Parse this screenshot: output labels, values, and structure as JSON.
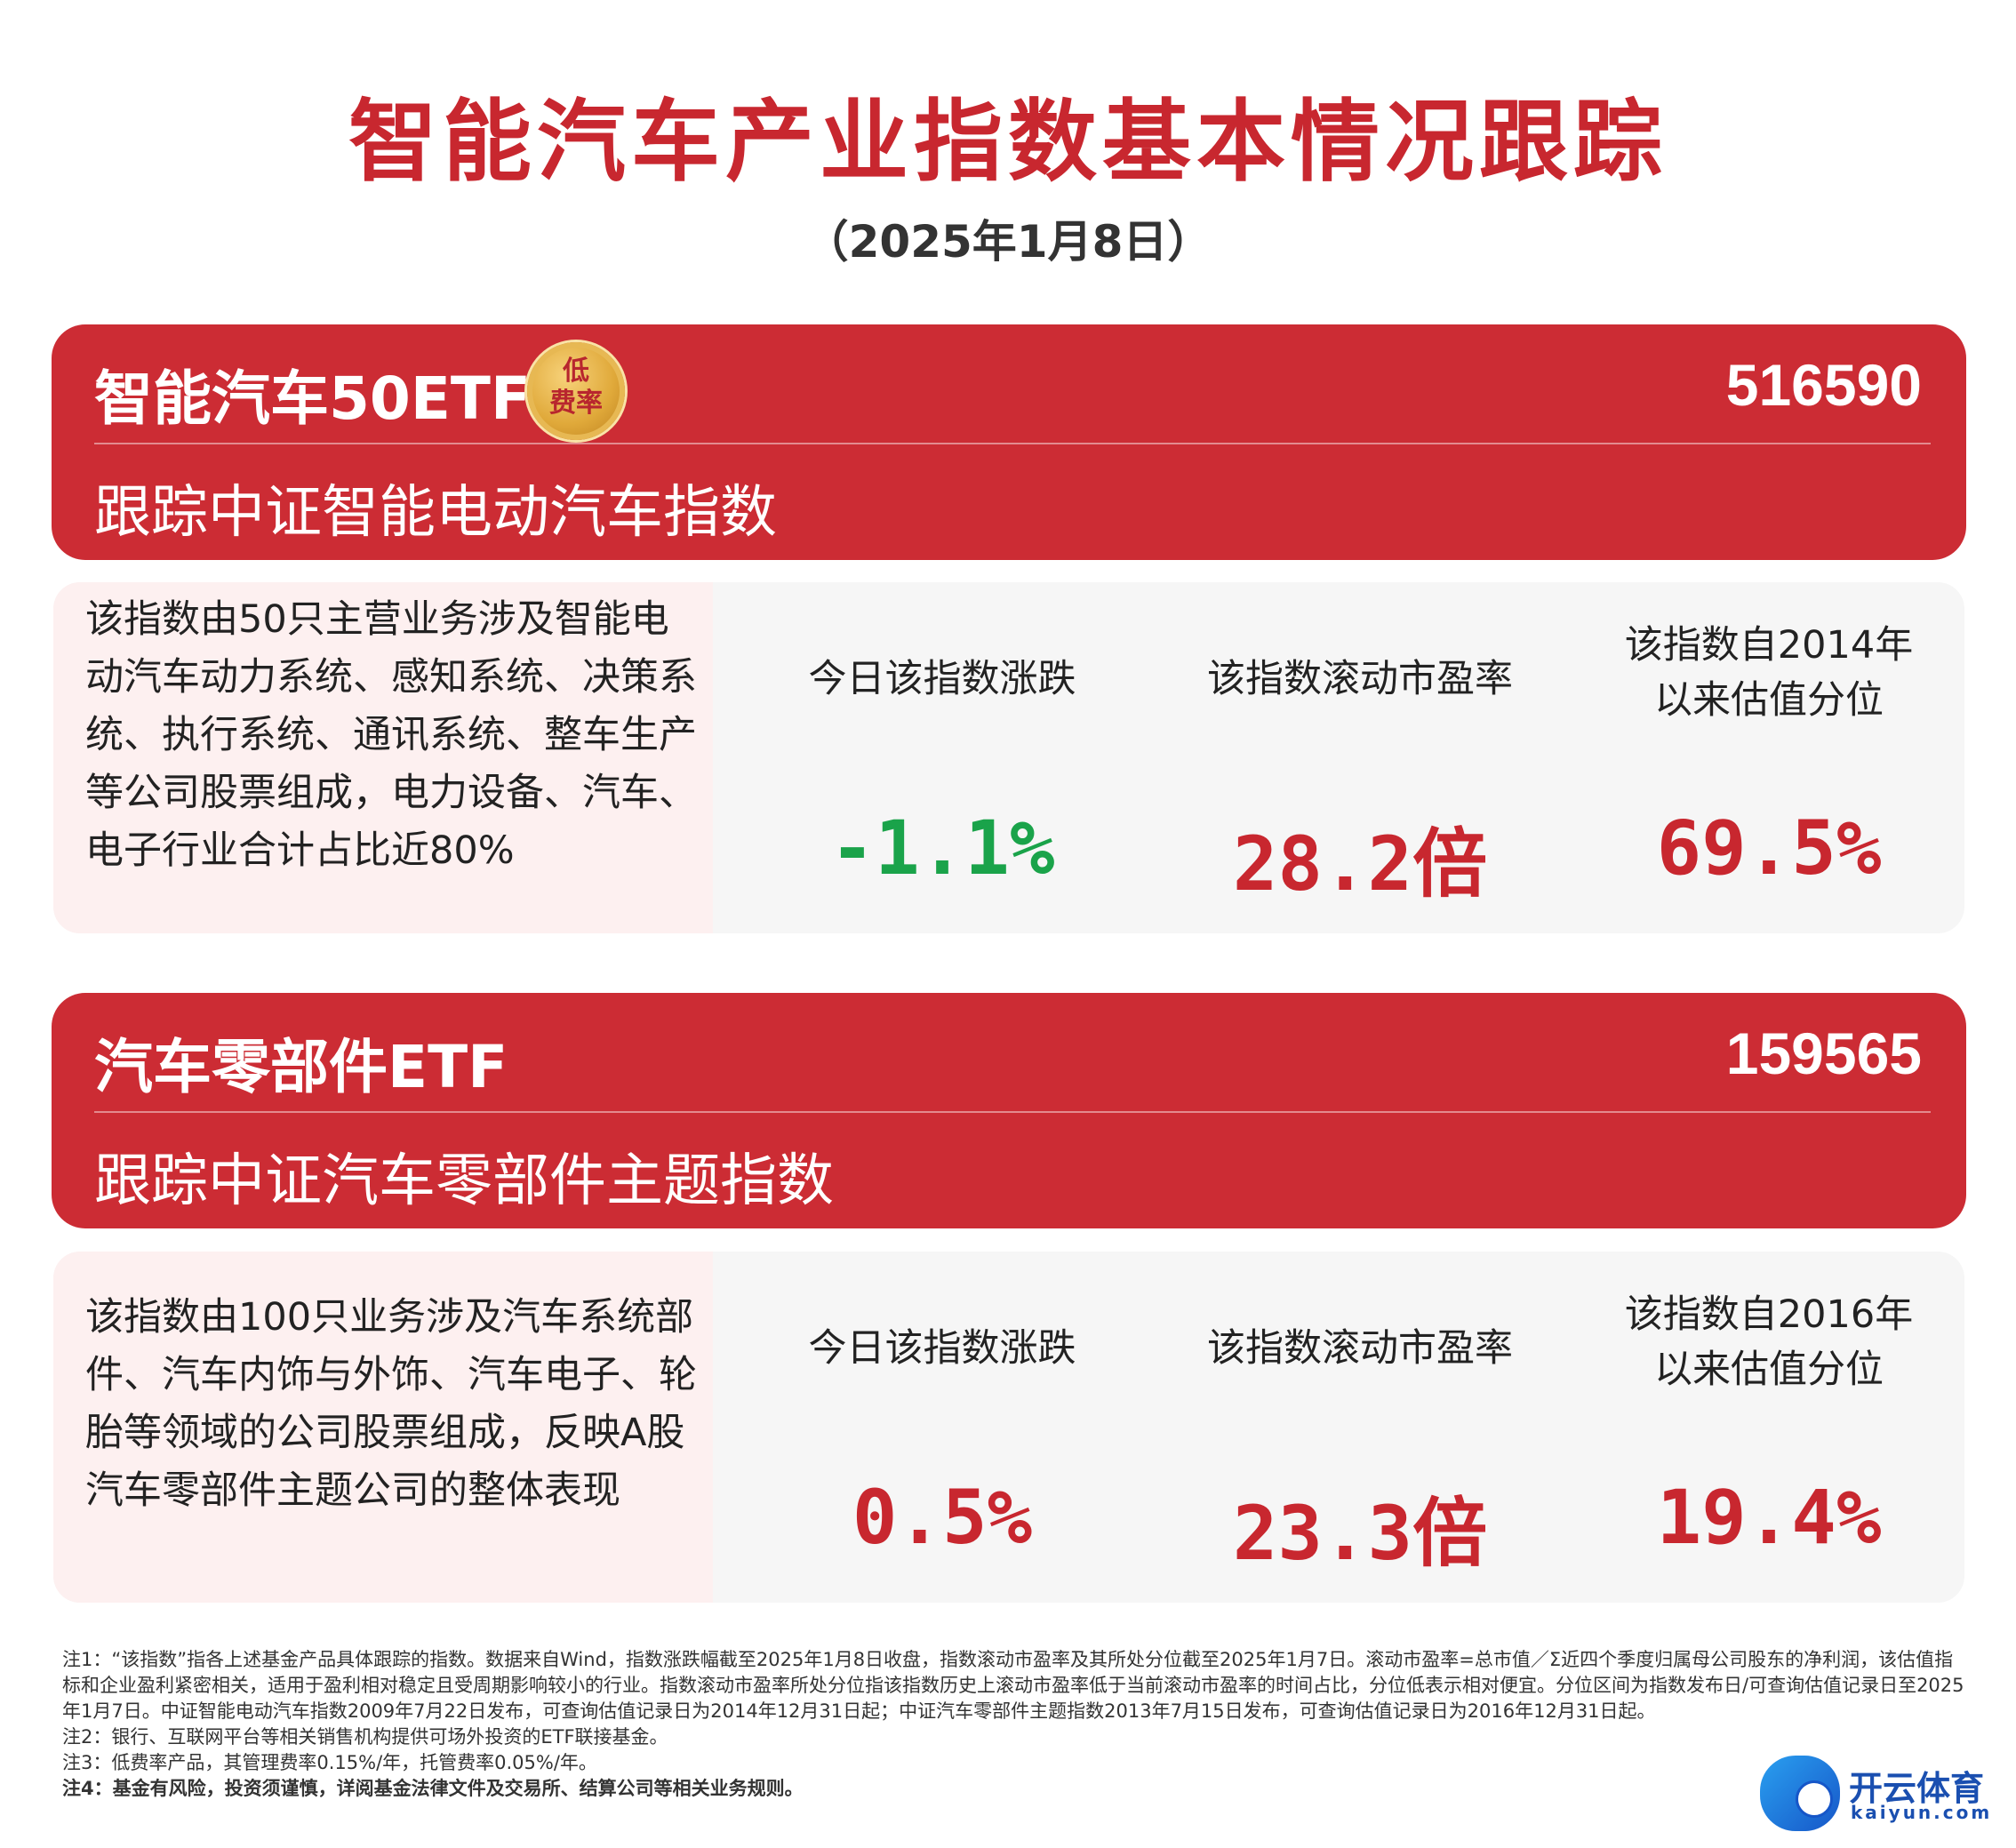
{
  "header": {
    "title": "智能汽车产业指数基本情况跟踪",
    "date": "（2025年1月8日）"
  },
  "funds": [
    {
      "name": "智能汽车50ETF",
      "badge": [
        "低",
        "费率"
      ],
      "code": "516590",
      "tracking": "跟踪中证智能电动汽车指数",
      "description": "该指数由50只主营业务涉及智能电动汽车动力系统、感知系统、决策系统、执行系统、通讯系统、整车生产等公司股票组成，电力设备、汽车、电子行业合计占比近80%",
      "metrics": [
        {
          "label": "今日该指数涨跌",
          "value": "-1.1%",
          "color": "#1aa34a"
        },
        {
          "label": "该指数滚动市盈率",
          "value": "28.2倍",
          "color": "#c8272f"
        },
        {
          "label": "该指数自2014年以来估值分位",
          "value": "69.5%",
          "color": "#c8272f"
        }
      ]
    },
    {
      "name": "汽车零部件ETF",
      "code": "159565",
      "tracking": "跟踪中证汽车零部件主题指数",
      "description": "该指数由100只业务涉及汽车系统部件、汽车内饰与外饰、汽车电子、轮胎等领域的公司股票组成，反映A股汽车零部件主题公司的整体表现",
      "metrics": [
        {
          "label": "今日该指数涨跌",
          "value": "0.5%",
          "color": "#c8272f"
        },
        {
          "label": "该指数滚动市盈率",
          "value": "23.3倍",
          "color": "#c8272f"
        },
        {
          "label": "该指数自2016年以来估值分位",
          "value": "19.4%",
          "color": "#c8272f"
        }
      ]
    }
  ],
  "notes": [
    "注1：“该指数”指各上述基金产品具体跟踪的指数。数据来自Wind，指数涨跌幅截至2025年1月8日收盘，指数滚动市盈率及其所处分位截至2025年1月7日。滚动市盈率=总市值／Σ近四个季度归属母公司股东的净利润，该估值指标和企业盈利紧密相关，适用于盈利相对稳定且受周期影响较小的行业。指数滚动市盈率所处分位指该指数历史上滚动市盈率低于当前滚动市盈率的时间占比，分位低表示相对便宜。分位区间为指数发布日/可查询估值记录日至2025年1月7日。中证智能电动汽车指数2009年7月22日发布，可查询估值记录日为2014年12月31日起；中证汽车零部件主题指数2013年7月15日发布，可查询估值记录日为2016年12月31日起。",
    "注2：银行、互联网平台等相关销售机构提供可场外投资的ETF联接基金。",
    "注3：低费率产品，其管理费率0.15%/年，托管费率0.05%/年。",
    "注4：基金有风险，投资须谨慎，详阅基金法律文件及交易所、结算公司等相关业务规则。"
  ],
  "logo": {
    "name": "开云体育",
    "url": "kaiyun.com"
  }
}
